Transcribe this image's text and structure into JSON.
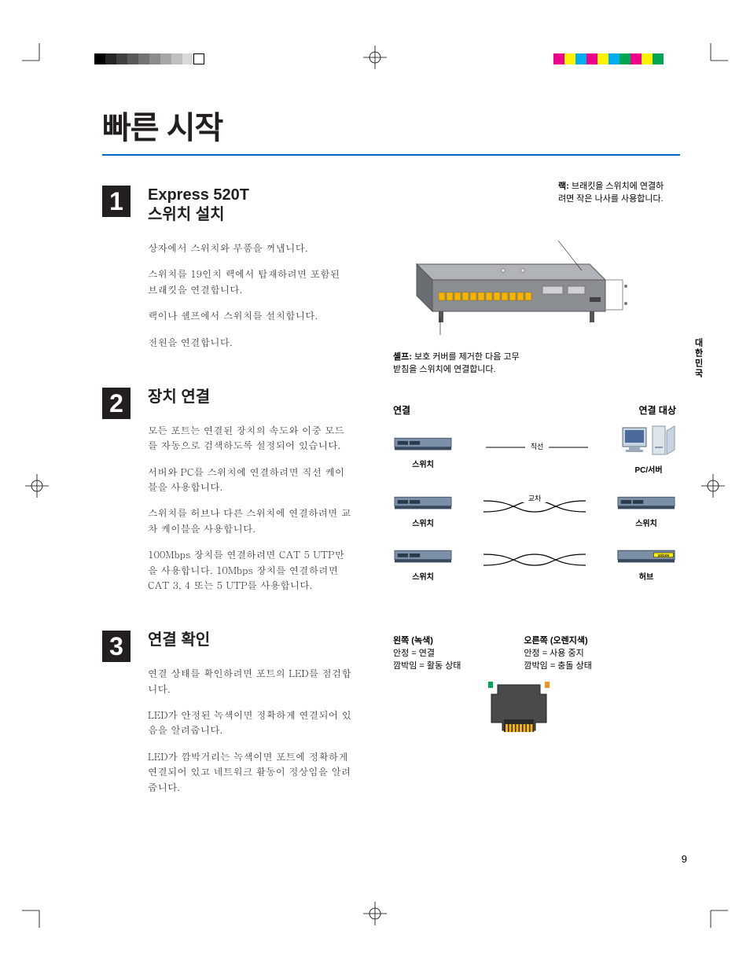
{
  "mainTitle": "빠른 시작",
  "sideTab": "대한민국",
  "pageNumber": "9",
  "colorbars": {
    "left": [
      "#000000",
      "#262626",
      "#404040",
      "#595959",
      "#737373",
      "#8c8c8c",
      "#a6a6a6",
      "#bfbfbf",
      "#d9d9d9",
      "#ffffff"
    ],
    "right": [
      "#ec008c",
      "#fff200",
      "#00aeef",
      "#ec008c",
      "#fff200",
      "#00aeef",
      "#00a651",
      "#ec008c",
      "#fff200",
      "#00a651"
    ]
  },
  "sections": [
    {
      "num": "1",
      "title": "Express 520T\n스위치 설치",
      "paras": [
        "상자에서 스위치와 부품을 꺼냅니다.",
        "스위치를 19인치 랙에서 탑재하려면 포함된 브래킷을 연결합니다.",
        "랙이나 쉘프에서 스위치를 설치합니다.",
        "전원을 연결합니다."
      ],
      "figure": {
        "rackLabel": {
          "bold": "랙:",
          "text": " 브래킷을 스위치에 연결하려면 작은 나사를 사용합니다."
        },
        "shelfLabel": {
          "bold": "셸프:",
          "text": " 보호 커버를 제거한 다음 고무 받침을 스위치에 연결합니다."
        }
      }
    },
    {
      "num": "2",
      "title": "장치 연결",
      "paras": [
        "모든 포트는 연결된 장치의 속도와 이중 모드를 자동으로 검색하도록 설정되어 있습니다.",
        "서버와 PC를 스위치에 연결하려면 직선 케이블을 사용합니다.",
        "스위치를 허브나 다른 스위치에 연결하려면 교차 케이블을 사용합니다.",
        "100Mbps 장치를 연결하려면 CAT 5 UTP만을 사용합니다. 10Mbps 장치를 연결하려면 CAT 3, 4 또는 5 UTP를 사용합니다."
      ],
      "figure": {
        "headerLeft": "연결",
        "headerRight": "연결 대상",
        "rows": [
          {
            "left": "스위치",
            "cable": "직선",
            "right": "PC/서버",
            "rightType": "pc",
            "cross": false
          },
          {
            "left": "스위치",
            "cable": "교차",
            "right": "스위치",
            "rightType": "switch",
            "cross": true
          },
          {
            "left": "스위치",
            "cable": "교차",
            "right": "허브",
            "rightType": "hub",
            "cross": true
          }
        ]
      }
    },
    {
      "num": "3",
      "title": "연결 확인",
      "paras": [
        "연결 상태를 확인하려면 포트의 LED를 점검합니다.",
        "LED가 안정된 녹색이면 정확하게 연결되어 있음을 알려줍니다.",
        "LED가 깜박거리는 녹색이면 포트에 정확하게 연결되어 있고 네트워크 활동이 정상임을 알려줍니다."
      ],
      "figure": {
        "left": {
          "header": "왼쪽 (녹색)",
          "lines": [
            "안정 = 연결",
            "깜박임 = 활동 상태"
          ]
        },
        "right": {
          "header": "오른쪽 (오렌지색)",
          "lines": [
            "안정 = 사용 중지",
            "깜박임 = 충돌 상태"
          ]
        }
      }
    }
  ],
  "colors": {
    "ruleBlue": "#0066cc",
    "black": "#231f20",
    "switchBody": "#7b8fa6",
    "switchDark": "#3a4a5e",
    "portYellow": "#f8b500",
    "green": "#00a651",
    "orange": "#f7941e",
    "hubYellow": "#fff200"
  }
}
